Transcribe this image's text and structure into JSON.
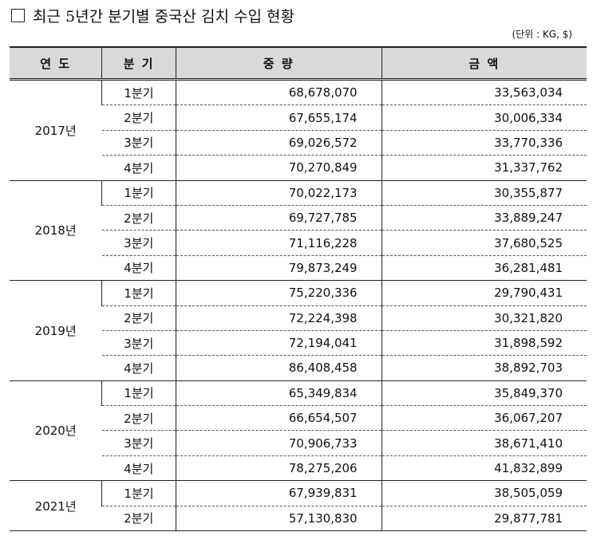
{
  "header": {
    "title": "최근 5년간 분기별 중국산 김치 수입 현황",
    "unit": "(단위 : KG, $)"
  },
  "table": {
    "columns": [
      "연 도",
      "분 기",
      "중 량",
      "금 액"
    ],
    "groups": [
      {
        "year": "2017년",
        "rows": [
          [
            "1분기",
            "68,678,070",
            "33,563,034"
          ],
          [
            "2분기",
            "67,655,174",
            "30,006,334"
          ],
          [
            "3분기",
            "69,026,572",
            "33,770,336"
          ],
          [
            "4분기",
            "70,270,849",
            "31,337,762"
          ]
        ]
      },
      {
        "year": "2018년",
        "rows": [
          [
            "1분기",
            "70,022,173",
            "30,355,877"
          ],
          [
            "2분기",
            "69,727,785",
            "33,889,247"
          ],
          [
            "3분기",
            "71,116,228",
            "37,680,525"
          ],
          [
            "4분기",
            "79,873,249",
            "36,281,481"
          ]
        ]
      },
      {
        "year": "2019년",
        "rows": [
          [
            "1분기",
            "75,220,336",
            "29,790,431"
          ],
          [
            "2분기",
            "72,224,398",
            "30,321,820"
          ],
          [
            "3분기",
            "72,194,041",
            "31,898,592"
          ],
          [
            "4분기",
            "86,408,458",
            "38,892,703"
          ]
        ]
      },
      {
        "year": "2020년",
        "rows": [
          [
            "1분기",
            "65,349,834",
            "35,849,370"
          ],
          [
            "2분기",
            "66,654,507",
            "36,067,207"
          ],
          [
            "3분기",
            "70,906,733",
            "38,671,410"
          ],
          [
            "4분기",
            "78,275,206",
            "41,832,899"
          ]
        ]
      },
      {
        "year": "2021년",
        "rows": [
          [
            "1분기",
            "67,939,831",
            "38,505,059"
          ],
          [
            "2분기",
            "57,130,830",
            "29,877,781"
          ]
        ]
      }
    ]
  }
}
